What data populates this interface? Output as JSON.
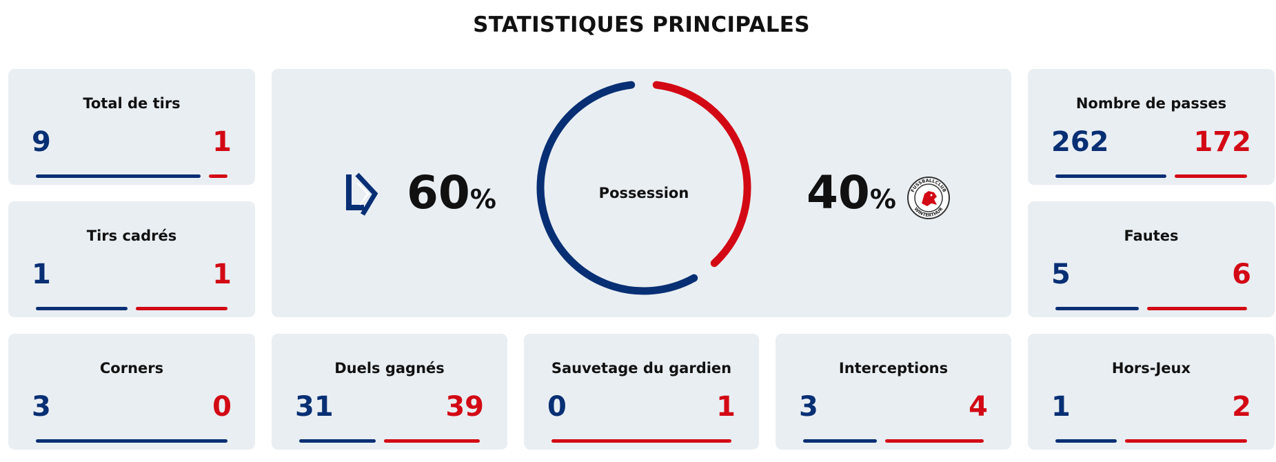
{
  "title": "STATISTIQUES PRINCIPALES",
  "colors": {
    "home": "#082f74",
    "away": "#d20914",
    "card": "#e9eef2"
  },
  "possession": {
    "label": "Possession",
    "home_pct": "60",
    "away_pct": "40",
    "pct_sign": "%",
    "home_value": 60,
    "away_value": 40,
    "home_logo": "lausanne-sport-logo",
    "away_logo": "fc-winterthur-logo",
    "away_logo_text_top": "FUSSBALLCLUB",
    "away_logo_text_bottom": "WINTERTHUR"
  },
  "stats": [
    {
      "id": "total-tirs",
      "label": "Total de tirs",
      "home": "9",
      "away": "1"
    },
    {
      "id": "tirs-cadres",
      "label": "Tirs cadrés",
      "home": "1",
      "away": "1"
    },
    {
      "id": "corners",
      "label": "Corners",
      "home": "3",
      "away": "0"
    },
    {
      "id": "duels-gagnes",
      "label": "Duels gagnés",
      "home": "31",
      "away": "39"
    },
    {
      "id": "sauvetage-gardien",
      "label": "Sauvetage du gardien",
      "home": "0",
      "away": "1"
    },
    {
      "id": "interceptions",
      "label": "Interceptions",
      "home": "3",
      "away": "4"
    },
    {
      "id": "nombre-passes",
      "label": "Nombre de passes",
      "home": "262",
      "away": "172"
    },
    {
      "id": "fautes",
      "label": "Fautes",
      "home": "5",
      "away": "6"
    },
    {
      "id": "hors-jeux",
      "label": "Hors-Jeux",
      "home": "1",
      "away": "2"
    }
  ]
}
